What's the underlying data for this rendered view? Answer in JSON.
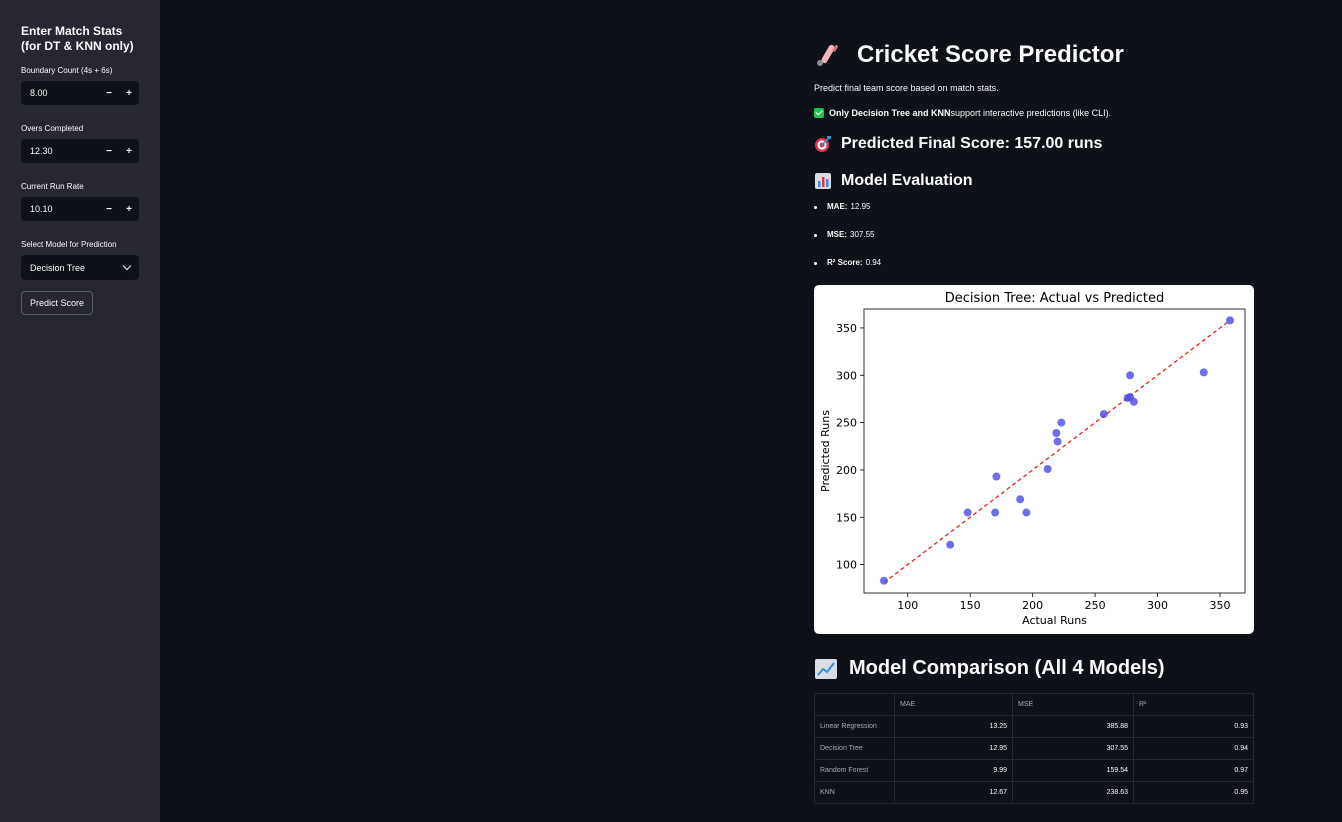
{
  "sidebar": {
    "title": "Enter Match Stats (for DT & KNN only)",
    "boundary_label": "Boundary Count (4s + 6s)",
    "boundary_value": "8.00",
    "overs_label": "Overs Completed",
    "overs_value": "12.30",
    "runrate_label": "Current Run Rate",
    "runrate_value": "10.10",
    "model_label": "Select Model for Prediction",
    "model_value": "Decision Tree",
    "predict_button": "Predict Score",
    "minus": "−",
    "plus": "+"
  },
  "main": {
    "title": "Cricket Score Predictor",
    "subtitle": "Predict final team score based on match stats.",
    "note_bold": "Only Decision Tree and KNN",
    "note_rest": " support interactive predictions (like CLI).",
    "prediction": "Predicted Final Score: 157.00 runs",
    "evaluation_heading": "Model Evaluation",
    "metrics": [
      {
        "label": "MAE:",
        "value": "12.95"
      },
      {
        "label": "MSE:",
        "value": "307.55"
      },
      {
        "label": "R² Score:",
        "value": "0.94"
      }
    ],
    "comparison_heading": "Model Comparison (All 4 Models)",
    "table": {
      "headers": [
        "",
        "MAE",
        "MSE",
        "R²"
      ],
      "rows": [
        [
          "Linear Regression",
          "13.25",
          "385.88",
          "0.93"
        ],
        [
          "Decision Tree",
          "12.95",
          "307.55",
          "0.94"
        ],
        [
          "Random Forest",
          "9.99",
          "159.54",
          "0.97"
        ],
        [
          "KNN",
          "12.67",
          "238.63",
          "0.95"
        ]
      ]
    }
  },
  "icons": {
    "title": "cricket-bat-icon",
    "prediction": "target-icon",
    "evaluation": "bar-chart-icon",
    "comparison": "line-chart-icon"
  },
  "colors": {
    "background": "#0e1117",
    "sidebar": "#262730",
    "points": "#4a4ae6",
    "diagonal": "#e62020"
  },
  "chart_data": {
    "type": "scatter",
    "title": "Decision Tree: Actual vs Predicted",
    "xlabel": "Actual Runs",
    "ylabel": "Predicted Runs",
    "xlim": [
      65,
      370
    ],
    "ylim": [
      70,
      370
    ],
    "xticks": [
      100,
      150,
      200,
      250,
      300,
      350
    ],
    "yticks": [
      100,
      150,
      200,
      250,
      300,
      350
    ],
    "points": [
      {
        "x": 81,
        "y": 83
      },
      {
        "x": 134,
        "y": 121
      },
      {
        "x": 148,
        "y": 155
      },
      {
        "x": 170,
        "y": 155
      },
      {
        "x": 171,
        "y": 193
      },
      {
        "x": 190,
        "y": 169
      },
      {
        "x": 195,
        "y": 155
      },
      {
        "x": 212,
        "y": 201
      },
      {
        "x": 219,
        "y": 239
      },
      {
        "x": 220,
        "y": 230
      },
      {
        "x": 223,
        "y": 250
      },
      {
        "x": 257,
        "y": 259
      },
      {
        "x": 276,
        "y": 276
      },
      {
        "x": 278,
        "y": 300
      },
      {
        "x": 278,
        "y": 277
      },
      {
        "x": 281,
        "y": 272
      },
      {
        "x": 337,
        "y": 303
      },
      {
        "x": 358,
        "y": 358
      }
    ],
    "reference_line": {
      "from": 81,
      "to": 358
    },
    "grid": false,
    "legend": "none"
  }
}
